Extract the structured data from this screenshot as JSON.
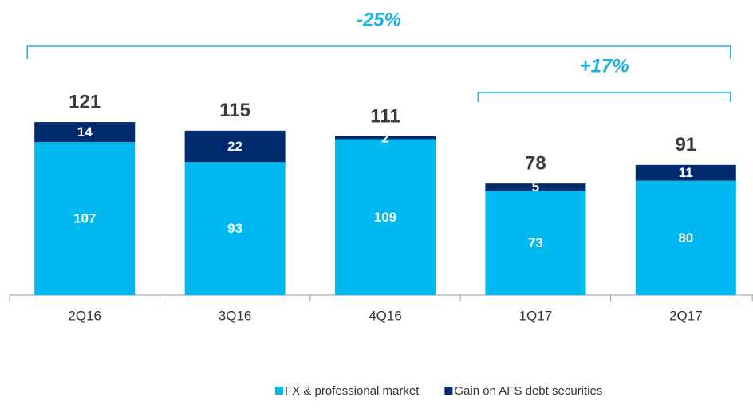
{
  "chart_data": {
    "type": "stacked_bar",
    "categories": [
      "2Q16",
      "3Q16",
      "4Q16",
      "1Q17",
      "2Q17"
    ],
    "series": [
      {
        "name": "FX & professional market",
        "color": "#00b9f1",
        "values": [
          107,
          93,
          109,
          73,
          80
        ]
      },
      {
        "name": "Gain on AFS debt securities",
        "color": "#002a6e",
        "values": [
          14,
          22,
          2,
          5,
          11
        ]
      }
    ],
    "totals": [
      121,
      115,
      111,
      78,
      91
    ],
    "annotations": [
      {
        "text": "-25%",
        "from": "2Q16",
        "to": "2Q17"
      },
      {
        "text": "+17%",
        "from": "1Q17",
        "to": "2Q17"
      }
    ],
    "ylim": [
      0,
      140
    ],
    "legend": "bottom"
  }
}
